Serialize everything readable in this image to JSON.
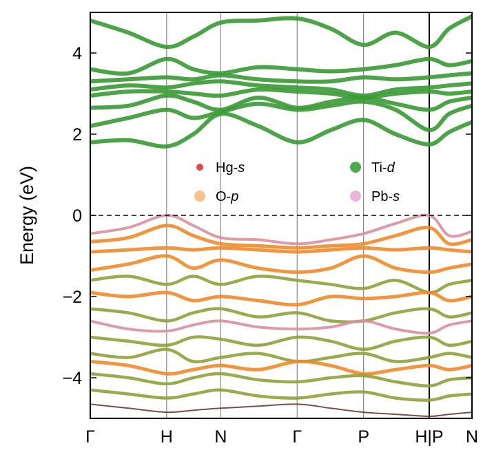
{
  "chart_data": {
    "type": "line",
    "title": "",
    "xlabel": "",
    "ylabel": "Energy (eV)",
    "ylim": [
      -5,
      5
    ],
    "yticks": [
      -4,
      -2,
      0,
      2,
      4
    ],
    "k_path": {
      "labels": [
        "Γ",
        "H",
        "N",
        "Γ",
        "P",
        "H|P",
        "N"
      ],
      "positions": [
        0,
        1,
        1.71,
        2.71,
        3.58,
        4.44,
        5.0
      ]
    },
    "fermi_level": 0,
    "legend": {
      "placement": "center",
      "entries": [
        {
          "name": "Hg-",
          "suffix": "s",
          "color": "#e8211b"
        },
        {
          "name": "Ti-",
          "suffix": "d",
          "color": "#2f9b2f"
        },
        {
          "name": "O-",
          "suffix": "p",
          "color": "#f5b97a"
        },
        {
          "name": "Pb-",
          "suffix": "s",
          "color": "#e6a8d7"
        }
      ]
    },
    "colors": {
      "conduction": "#3a9a34",
      "valence": "#f08a2a",
      "valence_mixed": "#8fa23a",
      "pb_band": "#d98fa0",
      "deep": "#6a3a3a"
    },
    "series": [
      {
        "band": "c1",
        "kind": "conduction",
        "x": [
          0,
          0.5,
          1,
          1.35,
          1.71,
          2.2,
          2.71,
          3.15,
          3.58,
          4.0,
          4.44,
          4.7,
          5.0
        ],
        "y": [
          1.8,
          1.85,
          1.7,
          2.0,
          2.5,
          2.2,
          1.8,
          2.1,
          2.35,
          2.0,
          1.75,
          2.05,
          2.3
        ]
      },
      {
        "band": "c2",
        "kind": "conduction",
        "x": [
          0,
          0.5,
          1,
          1.35,
          1.71,
          2.2,
          2.71,
          3.15,
          3.58,
          4.0,
          4.44,
          4.7,
          5.0
        ],
        "y": [
          2.2,
          2.4,
          2.6,
          2.4,
          2.55,
          2.75,
          2.6,
          2.7,
          2.8,
          2.6,
          2.1,
          2.5,
          2.7
        ]
      },
      {
        "band": "c3",
        "kind": "conduction",
        "x": [
          0,
          0.5,
          1,
          1.35,
          1.71,
          2.2,
          2.71,
          3.15,
          3.58,
          4.0,
          4.44,
          4.7,
          5.0
        ],
        "y": [
          2.65,
          2.7,
          2.95,
          2.8,
          2.6,
          2.9,
          2.65,
          2.8,
          2.9,
          2.75,
          2.6,
          2.8,
          2.9
        ]
      },
      {
        "band": "c4",
        "kind": "conduction",
        "x": [
          0,
          0.5,
          1,
          1.35,
          1.71,
          2.2,
          2.71,
          3.15,
          3.58,
          4.0,
          4.44,
          4.7,
          5.0
        ],
        "y": [
          2.95,
          3.05,
          3.05,
          3.0,
          2.95,
          3.1,
          3.05,
          3.0,
          2.9,
          3.0,
          3.05,
          3.0,
          3.05
        ]
      },
      {
        "band": "c5",
        "kind": "conduction",
        "x": [
          0,
          0.5,
          1,
          1.35,
          1.71,
          2.2,
          2.71,
          3.15,
          3.58,
          4.0,
          4.44,
          4.7,
          5.0
        ],
        "y": [
          3.1,
          3.2,
          3.15,
          3.25,
          3.3,
          3.2,
          3.15,
          3.1,
          2.95,
          3.1,
          3.15,
          3.2,
          3.25
        ]
      },
      {
        "band": "c6",
        "kind": "conduction",
        "x": [
          0,
          0.5,
          1,
          1.35,
          1.71,
          2.2,
          2.71,
          3.15,
          3.58,
          4.0,
          4.44,
          4.7,
          5.0
        ],
        "y": [
          3.3,
          3.35,
          3.4,
          3.35,
          3.45,
          3.35,
          3.3,
          3.3,
          3.4,
          3.35,
          3.4,
          3.45,
          3.5
        ]
      },
      {
        "band": "c7",
        "kind": "conduction",
        "x": [
          0,
          0.5,
          1,
          1.35,
          1.71,
          2.2,
          2.71,
          3.15,
          3.58,
          4.0,
          4.44,
          4.7,
          5.0
        ],
        "y": [
          3.6,
          3.5,
          3.85,
          3.6,
          3.5,
          3.65,
          3.6,
          3.55,
          3.6,
          3.7,
          3.85,
          3.7,
          3.8
        ]
      },
      {
        "band": "c8",
        "kind": "conduction",
        "x": [
          0,
          0.5,
          1,
          1.35,
          1.71,
          2.2,
          2.71,
          3.15,
          3.58,
          4.0,
          4.44,
          4.7,
          5.0
        ],
        "y": [
          4.8,
          4.5,
          4.15,
          4.4,
          4.75,
          4.8,
          4.85,
          4.6,
          4.2,
          4.5,
          4.15,
          4.6,
          4.9
        ]
      },
      {
        "band": "v1",
        "kind": "pb",
        "x": [
          0,
          0.5,
          1,
          1.35,
          1.71,
          2.2,
          2.71,
          3.15,
          3.58,
          4.0,
          4.44,
          4.7,
          5.0
        ],
        "y": [
          -0.45,
          -0.3,
          0.0,
          -0.25,
          -0.55,
          -0.6,
          -0.7,
          -0.6,
          -0.45,
          -0.2,
          0.0,
          -0.5,
          -0.4
        ]
      },
      {
        "band": "v2",
        "kind": "valence",
        "x": [
          0,
          0.5,
          1,
          1.35,
          1.71,
          2.2,
          2.71,
          3.15,
          3.58,
          4.0,
          4.44,
          4.7,
          5.0
        ],
        "y": [
          -0.65,
          -0.55,
          -0.25,
          -0.5,
          -0.7,
          -0.75,
          -0.8,
          -0.75,
          -0.7,
          -0.5,
          -0.3,
          -0.7,
          -0.6
        ]
      },
      {
        "band": "v3",
        "kind": "valence",
        "x": [
          0,
          0.5,
          1,
          1.35,
          1.71,
          2.2,
          2.71,
          3.15,
          3.58,
          4.0,
          4.44,
          4.7,
          5.0
        ],
        "y": [
          -0.9,
          -0.85,
          -0.8,
          -0.85,
          -0.8,
          -0.85,
          -0.9,
          -0.85,
          -0.8,
          -0.85,
          -0.8,
          -0.85,
          -0.9
        ]
      },
      {
        "band": "v4",
        "kind": "valence",
        "x": [
          0,
          0.5,
          1,
          1.35,
          1.71,
          2.2,
          2.71,
          3.15,
          3.58,
          4.0,
          4.44,
          4.7,
          5.0
        ],
        "y": [
          -1.35,
          -1.2,
          -1.0,
          -1.3,
          -1.1,
          -1.3,
          -1.4,
          -1.3,
          -1.0,
          -1.3,
          -1.4,
          -1.3,
          -1.2
        ]
      },
      {
        "band": "v5",
        "kind": "mixed",
        "x": [
          0,
          0.5,
          1,
          1.35,
          1.71,
          2.2,
          2.71,
          3.15,
          3.58,
          4.0,
          4.44,
          4.7,
          5.0
        ],
        "y": [
          -1.6,
          -1.5,
          -1.7,
          -1.5,
          -1.7,
          -1.5,
          -1.6,
          -1.7,
          -1.8,
          -1.6,
          -1.9,
          -1.7,
          -1.6
        ]
      },
      {
        "band": "v6",
        "kind": "valence",
        "x": [
          0,
          0.5,
          1,
          1.35,
          1.71,
          2.2,
          2.71,
          3.15,
          3.58,
          4.0,
          4.44,
          4.7,
          5.0
        ],
        "y": [
          -1.9,
          -2.0,
          -1.9,
          -2.1,
          -2.0,
          -2.1,
          -2.2,
          -2.0,
          -2.05,
          -2.0,
          -1.9,
          -2.1,
          -2.0
        ]
      },
      {
        "band": "v7",
        "kind": "mixed",
        "x": [
          0,
          0.5,
          1,
          1.35,
          1.71,
          2.2,
          2.71,
          3.15,
          3.58,
          4.0,
          4.44,
          4.7,
          5.0
        ],
        "y": [
          -2.3,
          -2.4,
          -2.6,
          -2.4,
          -2.3,
          -2.5,
          -2.4,
          -2.6,
          -2.6,
          -2.4,
          -2.3,
          -2.5,
          -2.4
        ]
      },
      {
        "band": "v8",
        "kind": "pb",
        "x": [
          0,
          0.5,
          1,
          1.35,
          1.71,
          2.2,
          2.71,
          3.15,
          3.58,
          4.0,
          4.44,
          4.7,
          5.0
        ],
        "y": [
          -2.6,
          -2.8,
          -2.85,
          -2.7,
          -2.6,
          -2.75,
          -2.8,
          -2.75,
          -2.6,
          -2.8,
          -2.9,
          -2.7,
          -2.6
        ]
      },
      {
        "band": "v9",
        "kind": "mixed",
        "x": [
          0,
          0.5,
          1,
          1.35,
          1.71,
          2.2,
          2.71,
          3.15,
          3.58,
          4.0,
          4.44,
          4.7,
          5.0
        ],
        "y": [
          -3.0,
          -3.1,
          -3.2,
          -3.0,
          -3.05,
          -3.2,
          -3.0,
          -3.1,
          -3.3,
          -3.1,
          -3.0,
          -3.2,
          -3.1
        ]
      },
      {
        "band": "v10",
        "kind": "mixed",
        "x": [
          0,
          0.5,
          1,
          1.35,
          1.71,
          2.2,
          2.71,
          3.15,
          3.58,
          4.0,
          4.44,
          4.7,
          5.0
        ],
        "y": [
          -3.4,
          -3.5,
          -3.3,
          -3.6,
          -3.5,
          -3.4,
          -3.6,
          -3.5,
          -3.4,
          -3.6,
          -3.5,
          -3.4,
          -3.5
        ]
      },
      {
        "band": "v11",
        "kind": "valence",
        "x": [
          0,
          0.5,
          1,
          1.35,
          1.71,
          2.2,
          2.71,
          3.15,
          3.58,
          4.0,
          4.44,
          4.7,
          5.0
        ],
        "y": [
          -3.6,
          -3.7,
          -3.9,
          -3.8,
          -3.7,
          -3.8,
          -3.6,
          -3.7,
          -3.9,
          -3.8,
          -3.7,
          -3.8,
          -3.7
        ]
      },
      {
        "band": "v12",
        "kind": "mixed",
        "x": [
          0,
          0.5,
          1,
          1.35,
          1.71,
          2.2,
          2.71,
          3.15,
          3.58,
          4.0,
          4.44,
          4.7,
          5.0
        ],
        "y": [
          -3.9,
          -4.0,
          -4.15,
          -4.0,
          -3.9,
          -4.05,
          -4.1,
          -4.0,
          -3.95,
          -4.1,
          -4.2,
          -4.05,
          -4.0
        ]
      },
      {
        "band": "v13",
        "kind": "mixed",
        "x": [
          0,
          0.5,
          1,
          1.35,
          1.71,
          2.2,
          2.71,
          3.15,
          3.58,
          4.0,
          4.44,
          4.7,
          5.0
        ],
        "y": [
          -4.3,
          -4.4,
          -4.5,
          -4.4,
          -4.3,
          -4.45,
          -4.5,
          -4.4,
          -4.35,
          -4.5,
          -4.55,
          -4.45,
          -4.4
        ]
      },
      {
        "band": "v14",
        "kind": "deep",
        "x": [
          0,
          0.5,
          1,
          1.35,
          1.71,
          2.2,
          2.71,
          3.15,
          3.58,
          4.0,
          4.44,
          4.7,
          5.0
        ],
        "y": [
          -4.65,
          -4.75,
          -4.85,
          -4.8,
          -4.75,
          -4.7,
          -4.65,
          -4.75,
          -4.85,
          -4.9,
          -4.95,
          -4.9,
          -4.85
        ]
      }
    ]
  }
}
